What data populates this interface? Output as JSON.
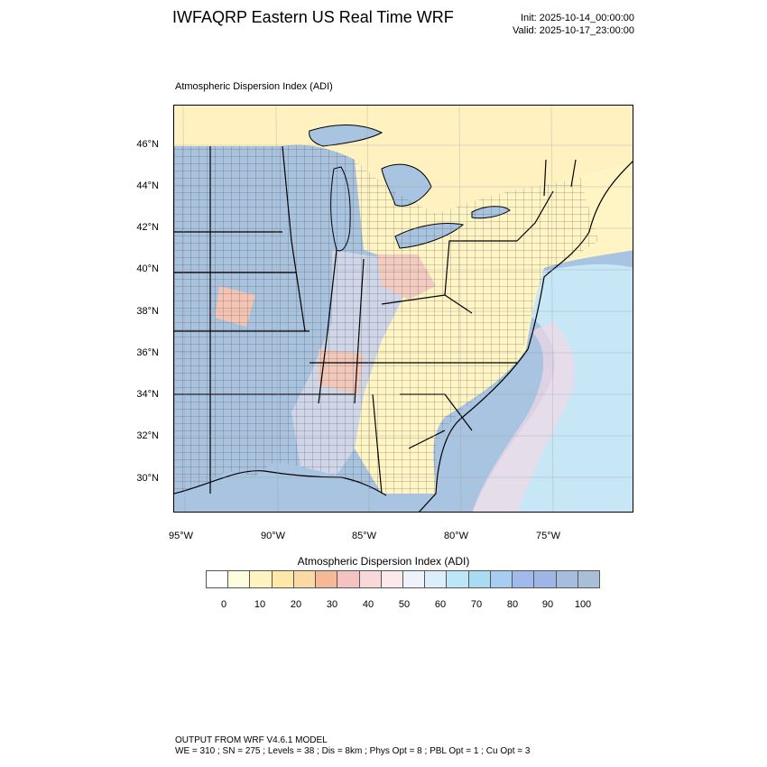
{
  "header": {
    "title": "IWFAQRP Eastern US Real Time WRF",
    "init": "Init: 2025-10-14_00:00:00",
    "valid": "Valid: 2025-10-17_23:00:00"
  },
  "map": {
    "subtitle": "Atmospheric Dispersion Index   (ADI)",
    "lat_labels": [
      "46°N",
      "44°N",
      "42°N",
      "40°N",
      "38°N",
      "36°N",
      "34°N",
      "32°N",
      "30°N"
    ],
    "lon_labels": [
      "95°W",
      "90°W",
      "85°W",
      "80°W",
      "75°W"
    ],
    "colors": {
      "land_low": "#fff7c8",
      "land_mid": "#fde3b5",
      "high_blue": "#a9c6e6",
      "water": "#a8c4e0",
      "light_blue": "#bfe2f4",
      "pinkish": "#f6cccc"
    }
  },
  "colorbar": {
    "title": "Atmospheric Dispersion Index  (ADI)",
    "labels": [
      "0",
      "10",
      "20",
      "30",
      "40",
      "50",
      "60",
      "70",
      "80",
      "90",
      "100"
    ],
    "colors": [
      "#ffffff",
      "#fffde0",
      "#fff3c0",
      "#fde8a8",
      "#fbd9a4",
      "#f7b896",
      "#f5c2c2",
      "#f8d8d8",
      "#fbe9ec",
      "#eef2fb",
      "#dbeefa",
      "#bde6f7",
      "#a9dcf3",
      "#a8cdf2",
      "#a0bbeb",
      "#9fb5e6",
      "#a6bddd",
      "#a9bfd8"
    ]
  },
  "footer": {
    "line1": "OUTPUT FROM WRF V4.6.1 MODEL",
    "line2": "WE = 310 ; SN = 275 ; Levels = 38 ; Dis = 8km ; Phys Opt = 8 ; PBL Opt = 1 ; Cu Opt = 3"
  }
}
